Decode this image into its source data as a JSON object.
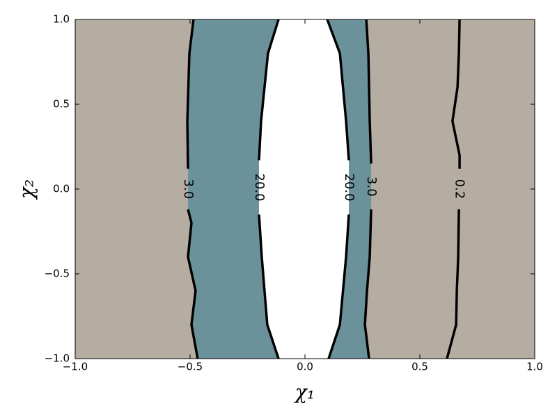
{
  "chart_data": {
    "type": "contour",
    "xlabel": "χ₁",
    "ylabel": "χ₂",
    "xlim": [
      -1.0,
      1.0
    ],
    "ylim": [
      -1.0,
      1.0
    ],
    "xticks": [
      {
        "value": -1.0,
        "label": "−1.0"
      },
      {
        "value": -0.5,
        "label": "−0.5"
      },
      {
        "value": 0,
        "label": "0.0"
      },
      {
        "value": 0.5,
        "label": "0.5"
      },
      {
        "value": 1.0,
        "label": "1.0"
      }
    ],
    "yticks": [
      {
        "value": -1.0,
        "label": "−1.0"
      },
      {
        "value": -0.5,
        "label": "−0.5"
      },
      {
        "value": 0,
        "label": "0.0"
      },
      {
        "value": 0.5,
        "label": "0.5"
      },
      {
        "value": 1.0,
        "label": "1.0"
      }
    ],
    "band_colors": [
      "#e8d0a6",
      "#b5aca2",
      "#6b929b",
      "#ffffff"
    ],
    "line_color": "#000000",
    "series": [
      {
        "level": 3.0,
        "label": "3.0",
        "side": "left",
        "x": [
          -0.485,
          -0.503,
          -0.512,
          -0.509,
          null,
          -0.509,
          -0.494,
          -0.509,
          -0.476,
          -0.494,
          -0.467
        ],
        "y": [
          1.0,
          0.8,
          0.4,
          0.12,
          null,
          -0.12,
          -0.2,
          -0.4,
          -0.6,
          -0.8,
          -1.0
        ]
      },
      {
        "level": 20.0,
        "label": "20.0",
        "side": "left",
        "x": [
          -0.115,
          -0.161,
          -0.191,
          -0.2,
          null,
          -0.2,
          -0.188,
          -0.164,
          -0.115
        ],
        "y": [
          1.0,
          0.8,
          0.4,
          0.17,
          null,
          -0.15,
          -0.4,
          -0.8,
          -1.0
        ]
      },
      {
        "level": 20.0,
        "label": "20.0",
        "side": "right",
        "x": [
          0.097,
          0.152,
          0.179,
          0.191,
          null,
          0.191,
          0.179,
          0.152,
          0.103
        ],
        "y": [
          1.0,
          0.8,
          0.4,
          0.17,
          null,
          -0.15,
          -0.4,
          -0.8,
          -1.0
        ]
      },
      {
        "level": 3.0,
        "label": "3.0",
        "side": "right",
        "x": [
          0.267,
          0.276,
          0.282,
          0.288,
          null,
          0.288,
          0.282,
          0.27,
          0.261,
          0.279
        ],
        "y": [
          1.0,
          0.8,
          0.4,
          0.15,
          null,
          -0.12,
          -0.4,
          -0.6,
          -0.8,
          -1.0
        ]
      },
      {
        "level": 0.2,
        "label": "0.2",
        "side": "right",
        "x": [
          0.673,
          0.67,
          0.664,
          0.642,
          0.673,
          0.673,
          null,
          0.67,
          0.667,
          0.661,
          0.658,
          0.618
        ],
        "y": [
          1.0,
          0.8,
          0.6,
          0.4,
          0.2,
          0.12,
          null,
          -0.12,
          -0.4,
          -0.6,
          -0.8,
          -1.0
        ]
      }
    ]
  }
}
